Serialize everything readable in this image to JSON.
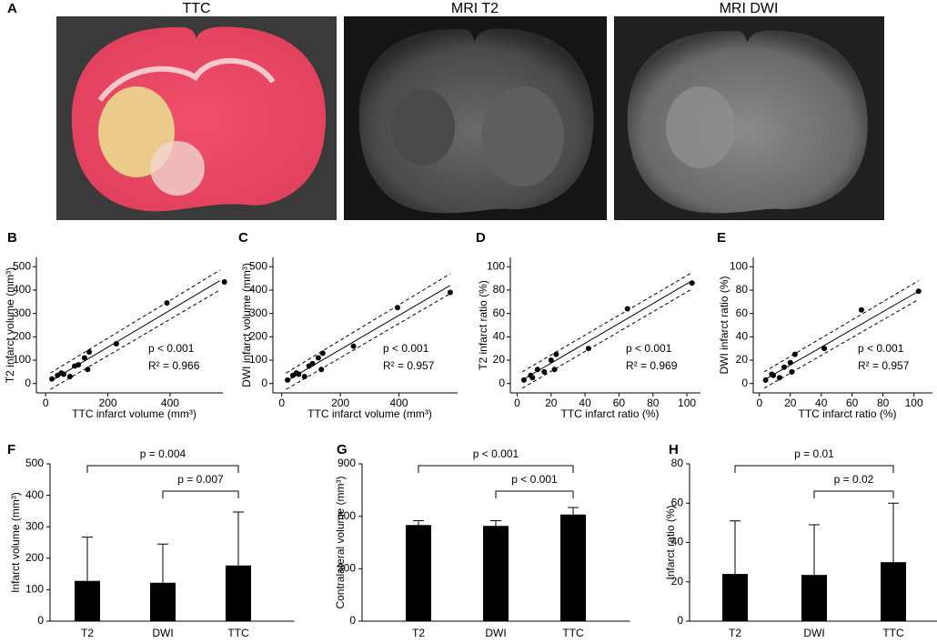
{
  "figure": {
    "label": "A",
    "images": [
      {
        "title": "TTC"
      },
      {
        "title": "MRI T2"
      },
      {
        "title": "MRI DWI"
      }
    ]
  },
  "chart_data": [
    {
      "type": "scatter",
      "label": "B",
      "x_label": "TTC infarct volume (mm³)",
      "y_label": "T2 infarct volume (mm³)",
      "color": "#000000",
      "x": [
        20,
        38,
        50,
        58,
        78,
        93,
        105,
        125,
        135,
        140,
        227,
        390,
        575
      ],
      "values": [
        20,
        35,
        45,
        40,
        30,
        75,
        80,
        110,
        60,
        135,
        170,
        345,
        435
      ],
      "fit": {
        "x": [
          15,
          560
        ],
        "values": [
          10,
          440
        ]
      },
      "ci_upper": {
        "x": [
          15,
          560
        ],
        "values": [
          45,
          485
        ]
      },
      "ci_lower": {
        "x": [
          15,
          560
        ],
        "values": [
          -25,
          400
        ]
      },
      "annotations": [
        "p < 0.001",
        "R² = 0.966"
      ],
      "xlim": [
        -30,
        570
      ],
      "xticks": [
        0,
        200,
        400
      ],
      "ylim": [
        -40,
        540
      ],
      "yticks": [
        0,
        100,
        200,
        300,
        400,
        500
      ]
    },
    {
      "type": "scatter",
      "label": "C",
      "x_label": "TTC infarct volume (mm³)",
      "y_label": "DWI infarct volume (mm³)",
      "color": "#000000",
      "x": [
        20,
        38,
        50,
        58,
        78,
        93,
        105,
        125,
        135,
        140,
        245,
        395,
        575
      ],
      "values": [
        15,
        35,
        45,
        40,
        30,
        75,
        85,
        110,
        60,
        130,
        160,
        325,
        390
      ],
      "fit": {
        "x": [
          15,
          575
        ],
        "values": [
          10,
          420
        ]
      },
      "ci_upper": {
        "x": [
          15,
          575
        ],
        "values": [
          45,
          470
        ]
      },
      "ci_lower": {
        "x": [
          15,
          575
        ],
        "values": [
          -25,
          385
        ]
      },
      "annotations": [
        "p < 0.001",
        "R² = 0.957"
      ],
      "xlim": [
        -30,
        600
      ],
      "xticks": [
        0,
        200,
        400
      ],
      "ylim": [
        -40,
        540
      ],
      "yticks": [
        0,
        100,
        200,
        300,
        400,
        500
      ]
    },
    {
      "type": "scatter",
      "label": "D",
      "x_label": "TTC infarct ratio (%)",
      "y_label": "T2 infarct ratio (%)",
      "color": "#000000",
      "x": [
        4,
        8,
        9,
        12,
        16,
        20,
        22,
        23,
        42,
        65,
        103
      ],
      "values": [
        3,
        7,
        5,
        12,
        10,
        20,
        12,
        25,
        30,
        64,
        86
      ],
      "fit": {
        "x": [
          3,
          103
        ],
        "values": [
          3,
          88
        ]
      },
      "ci_upper": {
        "x": [
          3,
          103
        ],
        "values": [
          10,
          95
        ]
      },
      "ci_lower": {
        "x": [
          3,
          103
        ],
        "values": [
          -4,
          81
        ]
      },
      "annotations": [
        "p < 0.001",
        "R² = 0.969"
      ],
      "xlim": [
        -4,
        108
      ],
      "xticks": [
        0,
        20,
        40,
        60,
        80,
        100
      ],
      "ylim": [
        -8,
        108
      ],
      "yticks": [
        0,
        20,
        40,
        60,
        80,
        100
      ]
    },
    {
      "type": "scatter",
      "label": "E",
      "x_label": "TTC infarct ratio (%)",
      "y_label": "DWI infarct ratio (%)",
      "color": "#000000",
      "x": [
        4,
        8,
        9,
        13,
        16,
        20,
        21,
        23,
        42,
        66,
        103
      ],
      "values": [
        3,
        8,
        7,
        5,
        14,
        18,
        10,
        25,
        30,
        63,
        79
      ],
      "fit": {
        "x": [
          3,
          103
        ],
        "values": [
          3,
          79
        ]
      },
      "ci_upper": {
        "x": [
          3,
          103
        ],
        "values": [
          10,
          88
        ]
      },
      "ci_lower": {
        "x": [
          3,
          103
        ],
        "values": [
          -4,
          72
        ]
      },
      "annotations": [
        "p < 0.001",
        "R² = 0.957"
      ],
      "xlim": [
        -4,
        112
      ],
      "xticks": [
        0,
        20,
        40,
        60,
        80,
        100
      ],
      "ylim": [
        -8,
        108
      ],
      "yticks": [
        0,
        20,
        40,
        60,
        80,
        100
      ]
    },
    {
      "type": "bar",
      "label": "F",
      "y_label": "Infarct volume (mm³)",
      "color": "#000000",
      "categories": [
        "T2",
        "DWI",
        "TTC"
      ],
      "values": [
        128,
        122,
        177
      ],
      "errors": [
        139,
        123,
        170
      ],
      "ylim": [
        0,
        500
      ],
      "yticks": [
        0,
        100,
        200,
        300,
        400,
        500
      ],
      "brackets": [
        {
          "between": [
            "T2",
            "TTC"
          ],
          "label": "p = 0.004"
        },
        {
          "between": [
            "DWI",
            "TTC"
          ],
          "label": "p = 0.007"
        }
      ]
    },
    {
      "type": "bar",
      "label": "G",
      "y_label": "Contralateral volume (mm³)",
      "color": "#000000",
      "categories": [
        "T2",
        "DWI",
        "TTC"
      ],
      "values": [
        550,
        545,
        610
      ],
      "errors": [
        25,
        30,
        40
      ],
      "ylim": [
        0,
        900
      ],
      "yticks": [
        0,
        300,
        600,
        900
      ],
      "brackets": [
        {
          "between": [
            "T2",
            "TTC"
          ],
          "label": "p < 0.001"
        },
        {
          "between": [
            "DWI",
            "TTC"
          ],
          "label": "p < 0.001"
        }
      ]
    },
    {
      "type": "bar",
      "label": "H",
      "y_label": "Infarct ratio (%)",
      "color": "#000000",
      "categories": [
        "T2",
        "DWI",
        "TTC"
      ],
      "values": [
        24,
        23.5,
        30
      ],
      "errors": [
        27,
        25.5,
        30
      ],
      "ylim": [
        0,
        80
      ],
      "yticks": [
        0,
        20,
        40,
        60,
        80
      ],
      "brackets": [
        {
          "between": [
            "T2",
            "TTC"
          ],
          "label": "p = 0.01"
        },
        {
          "between": [
            "DWI",
            "TTC"
          ],
          "label": "p = 0.02"
        }
      ]
    }
  ]
}
